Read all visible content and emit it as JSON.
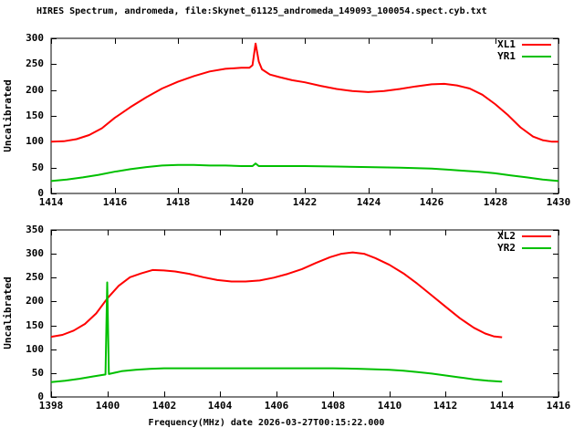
{
  "title": "HIRES Spectrum, andromeda, file:Skynet_61125_andromeda_149093_100054.spect.cyb.txt",
  "xlabel": "Frequency(MHz) date 2026-03-27T00:15:22.000",
  "colors": {
    "xl_line": "#ff0000",
    "yr_line": "#00c000",
    "axis": "#000000",
    "background": "#ffffff",
    "text": "#000000"
  },
  "chart_data": [
    {
      "type": "line",
      "ylabel": "Uncalibrated",
      "xlim": [
        1414,
        1430
      ],
      "ylim": [
        0,
        300
      ],
      "xticks": [
        1414,
        1416,
        1418,
        1420,
        1422,
        1424,
        1426,
        1428,
        1430
      ],
      "yticks": [
        0,
        50,
        100,
        150,
        200,
        250,
        300
      ],
      "grid": false,
      "legend": {
        "position": "top-right",
        "entries": [
          {
            "label": "XL1",
            "color": "#ff0000"
          },
          {
            "label": "YR1",
            "color": "#00c000"
          }
        ]
      },
      "series": [
        {
          "name": "XL1",
          "color": "#ff0000",
          "points": [
            [
              1414.0,
              100
            ],
            [
              1414.4,
              101
            ],
            [
              1414.8,
              105
            ],
            [
              1415.2,
              113
            ],
            [
              1415.6,
              126
            ],
            [
              1416.0,
              146
            ],
            [
              1416.5,
              167
            ],
            [
              1417.0,
              186
            ],
            [
              1417.5,
              203
            ],
            [
              1418.0,
              216
            ],
            [
              1418.5,
              227
            ],
            [
              1419.0,
              236
            ],
            [
              1419.5,
              241
            ],
            [
              1420.0,
              243
            ],
            [
              1420.25,
              243
            ],
            [
              1420.35,
              248
            ],
            [
              1420.45,
              290
            ],
            [
              1420.55,
              255
            ],
            [
              1420.65,
              240
            ],
            [
              1420.9,
              230
            ],
            [
              1421.2,
              225
            ],
            [
              1421.6,
              219
            ],
            [
              1422.0,
              215
            ],
            [
              1422.5,
              208
            ],
            [
              1423.0,
              202
            ],
            [
              1423.5,
              198
            ],
            [
              1424.0,
              196
            ],
            [
              1424.5,
              198
            ],
            [
              1425.0,
              202
            ],
            [
              1425.5,
              207
            ],
            [
              1426.0,
              211
            ],
            [
              1426.4,
              212
            ],
            [
              1426.8,
              209
            ],
            [
              1427.2,
              203
            ],
            [
              1427.6,
              191
            ],
            [
              1428.0,
              173
            ],
            [
              1428.4,
              152
            ],
            [
              1428.8,
              128
            ],
            [
              1429.2,
              110
            ],
            [
              1429.5,
              103
            ],
            [
              1429.8,
              100
            ],
            [
              1430.0,
              100
            ]
          ]
        },
        {
          "name": "YR1",
          "color": "#00c000",
          "points": [
            [
              1414.0,
              24
            ],
            [
              1414.5,
              27
            ],
            [
              1415.0,
              31
            ],
            [
              1415.5,
              36
            ],
            [
              1416.0,
              42
            ],
            [
              1416.5,
              47
            ],
            [
              1417.0,
              51
            ],
            [
              1417.5,
              54
            ],
            [
              1418.0,
              55
            ],
            [
              1418.5,
              55
            ],
            [
              1419.0,
              54
            ],
            [
              1419.5,
              54
            ],
            [
              1420.0,
              53
            ],
            [
              1420.35,
              53
            ],
            [
              1420.45,
              58
            ],
            [
              1420.55,
              53
            ],
            [
              1421.0,
              53
            ],
            [
              1422.0,
              53
            ],
            [
              1423.0,
              52
            ],
            [
              1424.0,
              51
            ],
            [
              1425.0,
              50
            ],
            [
              1425.5,
              49
            ],
            [
              1426.0,
              48
            ],
            [
              1426.5,
              46
            ],
            [
              1427.0,
              44
            ],
            [
              1427.5,
              42
            ],
            [
              1428.0,
              39
            ],
            [
              1428.5,
              35
            ],
            [
              1429.0,
              31
            ],
            [
              1429.5,
              27
            ],
            [
              1430.0,
              24
            ]
          ]
        }
      ]
    },
    {
      "type": "line",
      "ylabel": "Uncalibrated",
      "xlim": [
        1398,
        1416
      ],
      "ylim": [
        0,
        350
      ],
      "xticks": [
        1398,
        1400,
        1402,
        1404,
        1406,
        1408,
        1410,
        1412,
        1414,
        1416
      ],
      "yticks": [
        0,
        50,
        100,
        150,
        200,
        250,
        300,
        350
      ],
      "grid": false,
      "legend": {
        "position": "top-right",
        "entries": [
          {
            "label": "XL2",
            "color": "#ff0000"
          },
          {
            "label": "YR2",
            "color": "#00c000"
          }
        ]
      },
      "series": [
        {
          "name": "XL2",
          "color": "#ff0000",
          "points": [
            [
              1398.0,
              126
            ],
            [
              1398.4,
              130
            ],
            [
              1398.8,
              139
            ],
            [
              1399.2,
              153
            ],
            [
              1399.6,
              175
            ],
            [
              1400.0,
              207
            ],
            [
              1400.4,
              233
            ],
            [
              1400.8,
              251
            ],
            [
              1401.2,
              259
            ],
            [
              1401.6,
              266
            ],
            [
              1402.0,
              265
            ],
            [
              1402.4,
              263
            ],
            [
              1402.9,
              258
            ],
            [
              1403.4,
              251
            ],
            [
              1403.9,
              245
            ],
            [
              1404.4,
              242
            ],
            [
              1404.9,
              242
            ],
            [
              1405.4,
              244
            ],
            [
              1405.9,
              250
            ],
            [
              1406.4,
              258
            ],
            [
              1406.9,
              268
            ],
            [
              1407.4,
              281
            ],
            [
              1407.9,
              293
            ],
            [
              1408.3,
              300
            ],
            [
              1408.7,
              303
            ],
            [
              1409.1,
              300
            ],
            [
              1409.5,
              291
            ],
            [
              1410.0,
              277
            ],
            [
              1410.5,
              259
            ],
            [
              1411.0,
              237
            ],
            [
              1411.5,
              213
            ],
            [
              1412.0,
              189
            ],
            [
              1412.5,
              165
            ],
            [
              1413.0,
              145
            ],
            [
              1413.4,
              133
            ],
            [
              1413.7,
              127
            ],
            [
              1414.0,
              125
            ]
          ]
        },
        {
          "name": "YR2",
          "color": "#00c000",
          "points": [
            [
              1398.0,
              31
            ],
            [
              1398.5,
              34
            ],
            [
              1399.0,
              38
            ],
            [
              1399.5,
              43
            ],
            [
              1399.93,
              47
            ],
            [
              1399.99,
              240
            ],
            [
              1400.05,
              48
            ],
            [
              1400.5,
              54
            ],
            [
              1401.0,
              57
            ],
            [
              1401.5,
              59
            ],
            [
              1402.0,
              60
            ],
            [
              1403.0,
              60
            ],
            [
              1404.0,
              60
            ],
            [
              1405.0,
              60
            ],
            [
              1406.0,
              60
            ],
            [
              1407.0,
              60
            ],
            [
              1408.0,
              60
            ],
            [
              1409.0,
              59
            ],
            [
              1409.5,
              58
            ],
            [
              1410.0,
              57
            ],
            [
              1410.5,
              55
            ],
            [
              1411.0,
              52
            ],
            [
              1411.5,
              49
            ],
            [
              1412.0,
              45
            ],
            [
              1412.5,
              41
            ],
            [
              1413.0,
              37
            ],
            [
              1413.5,
              34
            ],
            [
              1414.0,
              32
            ]
          ]
        }
      ]
    }
  ]
}
